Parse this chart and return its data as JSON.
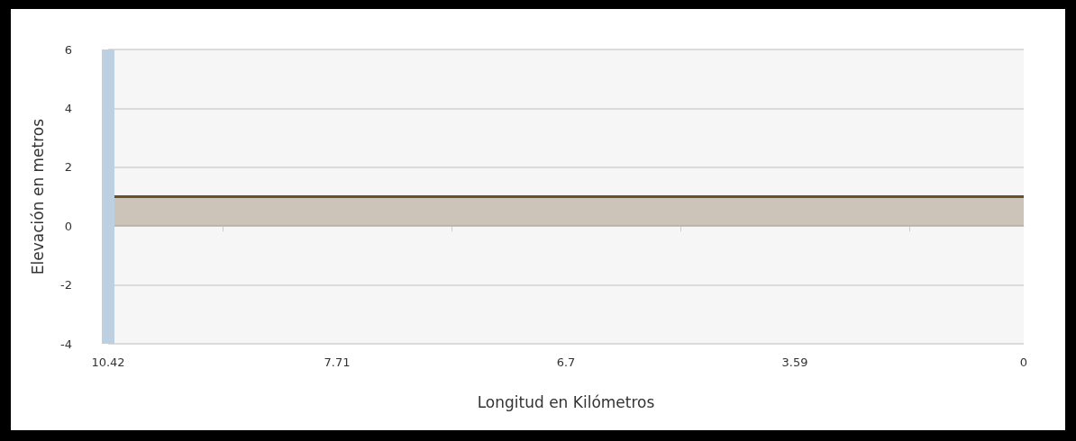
{
  "chart_data": {
    "type": "area",
    "xlabel": "Longitud en Kilómetros",
    "ylabel": "Elevación en metros",
    "categories": [
      "10.42",
      null,
      "7.71",
      null,
      "6.7",
      null,
      "3.59",
      null,
      "0"
    ],
    "series": [
      {
        "color": "#6b4f2a",
        "values": [
          1,
          1,
          1,
          1,
          1,
          1,
          1,
          1,
          1
        ]
      }
    ],
    "ylim": [
      -4,
      6
    ],
    "yticks": [
      -4,
      -2,
      0,
      2,
      4,
      6
    ],
    "grid": "y",
    "marker": "none",
    "line_style": "solid",
    "ref_lines": [
      {
        "axis": "x",
        "value": "10.42",
        "color": "#bcd0e2"
      }
    ]
  }
}
